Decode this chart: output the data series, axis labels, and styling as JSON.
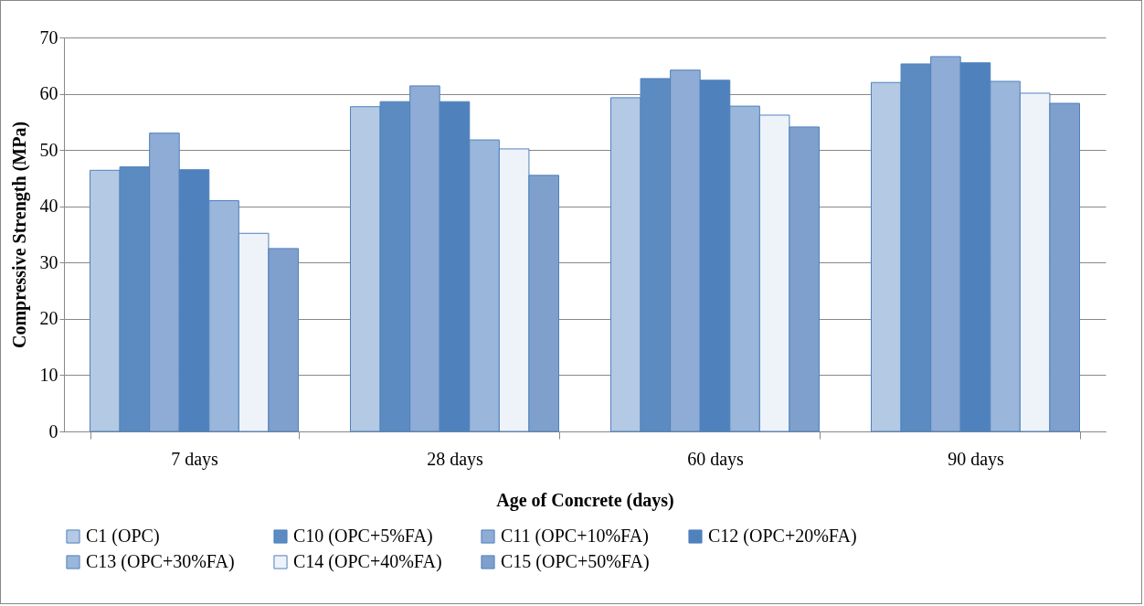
{
  "chart_data": {
    "type": "bar",
    "xlabel": "Age of Concrete (days)",
    "ylabel": "Compressive Strength (MPa)",
    "categories": [
      "7 days",
      "28 days",
      "60 days",
      "90 days"
    ],
    "series": [
      {
        "name": "C1 (OPC)",
        "color": "#b4c9e3",
        "values": [
          46.4,
          57.7,
          59.3,
          62
        ]
      },
      {
        "name": "C10 (OPC+5%FA)",
        "color": "#5c8bc2",
        "values": [
          47,
          58.6,
          62.7,
          65.3
        ]
      },
      {
        "name": "C11 (OPC+10%FA)",
        "color": "#8eacd5",
        "values": [
          53,
          61.4,
          64.2,
          66.6
        ]
      },
      {
        "name": "C12 (OPC+20%FA)",
        "color": "#4f81bd",
        "values": [
          46.5,
          58.6,
          62.4,
          65.5
        ]
      },
      {
        "name": "C13 (OPC+30%FA)",
        "color": "#9ab6da",
        "values": [
          41,
          51.8,
          57.8,
          62.2
        ]
      },
      {
        "name": "C14 (OPC+40%FA)",
        "color": "#eef3f9",
        "values": [
          35.2,
          50.2,
          56.2,
          60.1
        ]
      },
      {
        "name": "C15 (OPC+50%FA)",
        "color": "#7fa0cc",
        "values": [
          32.5,
          45.5,
          54.1,
          58.3
        ]
      }
    ],
    "ylim": [
      0,
      70
    ],
    "yticks": [
      0,
      10,
      20,
      30,
      40,
      50,
      60,
      70
    ],
    "grid": "y",
    "legend": "bottom"
  }
}
